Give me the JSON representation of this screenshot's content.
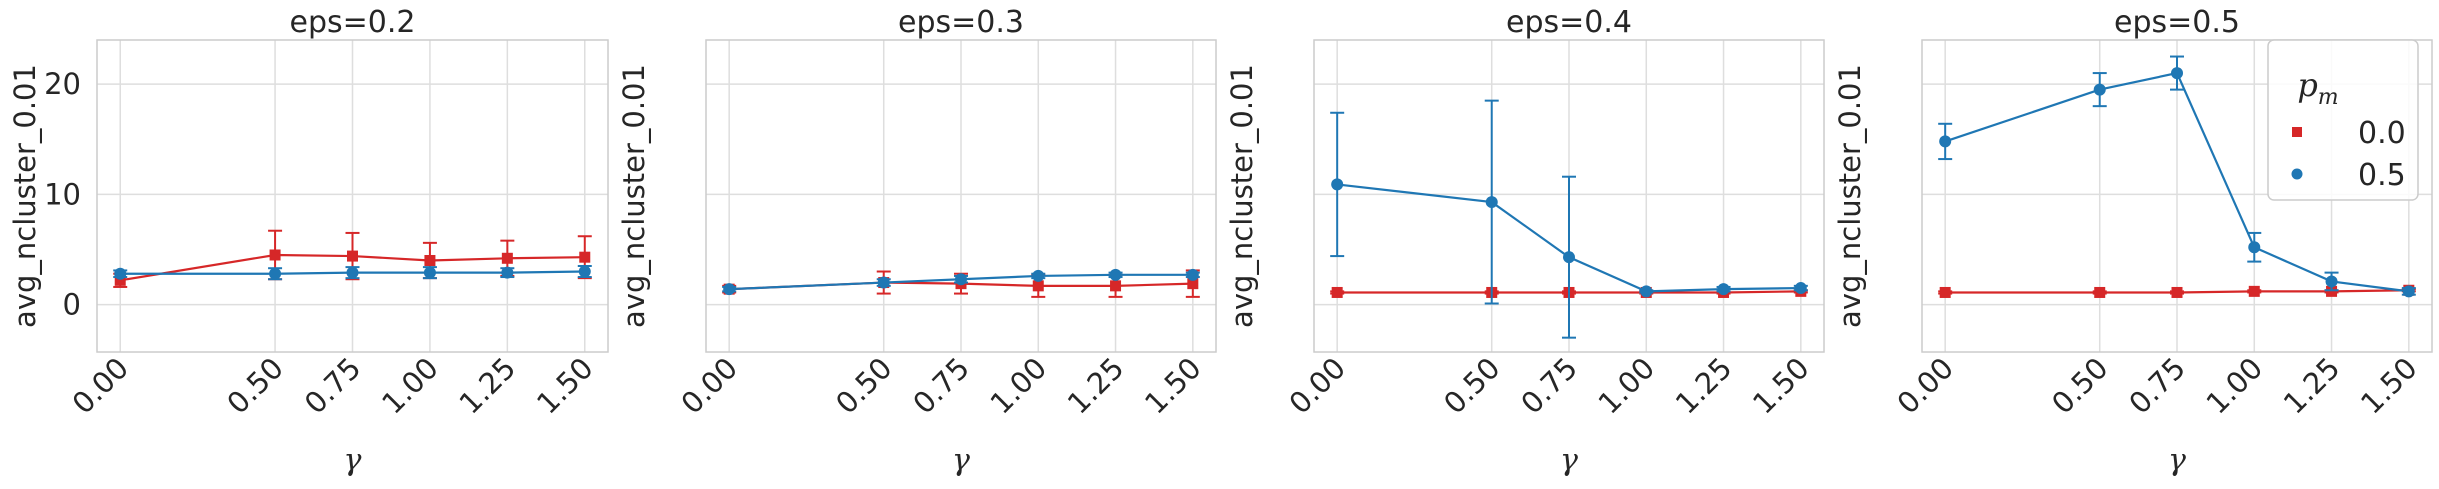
{
  "chart_data": [
    {
      "type": "line",
      "title": "eps=0.2",
      "xlabel": "γ",
      "ylabel": "avg_ncluster_0.01",
      "x": [
        0.0,
        0.5,
        0.75,
        1.0,
        1.25,
        1.5
      ],
      "x_tick_labels": [
        "0.00",
        "0.50",
        "0.75",
        "1.00",
        "1.25",
        "1.50"
      ],
      "y_ticks": [
        0,
        10,
        20
      ],
      "y_tick_labels": [
        "0",
        "10",
        "20"
      ],
      "ylim": [
        -4.3,
        24
      ],
      "grid": true,
      "series": [
        {
          "name": "0.0",
          "color": "#d62728",
          "marker": "square",
          "values": [
            2.2,
            4.5,
            4.4,
            4.0,
            4.2,
            4.3
          ],
          "err": [
            0.6,
            2.2,
            2.1,
            1.6,
            1.6,
            1.9
          ]
        },
        {
          "name": "0.5",
          "color": "#1f77b4",
          "marker": "circle",
          "values": [
            2.8,
            2.8,
            2.9,
            2.9,
            2.9,
            3.0
          ],
          "err": [
            0.3,
            0.5,
            0.5,
            0.5,
            0.4,
            0.5
          ]
        }
      ]
    },
    {
      "type": "line",
      "title": "eps=0.3",
      "xlabel": "γ",
      "ylabel": "avg_ncluster_0.01",
      "x": [
        0.0,
        0.5,
        0.75,
        1.0,
        1.25,
        1.5
      ],
      "x_tick_labels": [
        "0.00",
        "0.50",
        "0.75",
        "1.00",
        "1.25",
        "1.50"
      ],
      "y_ticks": [
        0,
        10,
        20
      ],
      "y_tick_labels": [
        "",
        "",
        ""
      ],
      "ylim": [
        -4.3,
        24
      ],
      "grid": true,
      "series": [
        {
          "name": "0.0",
          "color": "#d62728",
          "marker": "square",
          "values": [
            1.4,
            2.0,
            1.9,
            1.7,
            1.7,
            1.9
          ],
          "err": [
            0.3,
            1.0,
            0.9,
            1.0,
            1.0,
            1.2
          ]
        },
        {
          "name": "0.5",
          "color": "#1f77b4",
          "marker": "circle",
          "values": [
            1.4,
            2.0,
            2.3,
            2.6,
            2.7,
            2.7
          ],
          "err": [
            0.2,
            0.3,
            0.3,
            0.2,
            0.2,
            0.2
          ]
        }
      ]
    },
    {
      "type": "line",
      "title": "eps=0.4",
      "xlabel": "γ",
      "ylabel": "avg_ncluster_0.01",
      "x": [
        0.0,
        0.5,
        0.75,
        1.0,
        1.25,
        1.5
      ],
      "x_tick_labels": [
        "0.00",
        "0.50",
        "0.75",
        "1.00",
        "1.25",
        "1.50"
      ],
      "y_ticks": [
        0,
        10,
        20
      ],
      "y_tick_labels": [
        "",
        "",
        ""
      ],
      "ylim": [
        -4.3,
        24
      ],
      "grid": true,
      "series": [
        {
          "name": "0.0",
          "color": "#d62728",
          "marker": "square",
          "values": [
            1.1,
            1.1,
            1.1,
            1.1,
            1.1,
            1.2
          ],
          "err": [
            0.1,
            0.1,
            0.1,
            0.1,
            0.1,
            0.1
          ]
        },
        {
          "name": "0.5",
          "color": "#1f77b4",
          "marker": "circle",
          "values": [
            10.9,
            9.3,
            4.3,
            1.2,
            1.4,
            1.5
          ],
          "err": [
            6.5,
            9.2,
            7.3,
            0.1,
            0.2,
            0.2
          ]
        }
      ]
    },
    {
      "type": "line",
      "title": "eps=0.5",
      "xlabel": "γ",
      "ylabel": "avg_ncluster_0.01",
      "x": [
        0.0,
        0.5,
        0.75,
        1.0,
        1.25,
        1.5
      ],
      "x_tick_labels": [
        "0.00",
        "0.50",
        "0.75",
        "1.00",
        "1.25",
        "1.50"
      ],
      "y_ticks": [
        0,
        10,
        20
      ],
      "y_tick_labels": [
        "",
        "",
        ""
      ],
      "ylim": [
        -4.3,
        24
      ],
      "grid": true,
      "series": [
        {
          "name": "0.0",
          "color": "#d62728",
          "marker": "square",
          "values": [
            1.1,
            1.1,
            1.1,
            1.2,
            1.2,
            1.3
          ],
          "err": [
            0.1,
            0.1,
            0.1,
            0.1,
            0.1,
            0.1
          ]
        },
        {
          "name": "0.5",
          "color": "#1f77b4",
          "marker": "circle",
          "values": [
            14.8,
            19.5,
            21.0,
            5.2,
            2.1,
            1.2
          ],
          "err": [
            1.6,
            1.5,
            1.5,
            1.3,
            0.8,
            0.3
          ]
        }
      ]
    }
  ],
  "legend": {
    "title_main": "p",
    "title_sub": "m",
    "placement": "upper-right of last panel",
    "entries": [
      {
        "label": "0.0",
        "color": "#d62728",
        "marker": "square"
      },
      {
        "label": "0.5",
        "color": "#1f77b4",
        "marker": "circle"
      }
    ]
  }
}
